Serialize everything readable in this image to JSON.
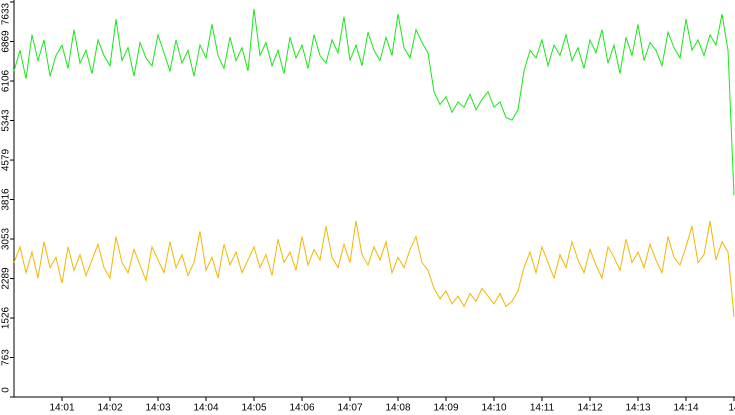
{
  "chart_data": {
    "type": "line",
    "categories": [
      null,
      null,
      null,
      null,
      null,
      null,
      null,
      null,
      "14:01",
      null,
      null,
      null,
      null,
      null,
      null,
      null,
      "14:02",
      null,
      null,
      null,
      null,
      null,
      null,
      null,
      "14:03",
      null,
      null,
      null,
      null,
      null,
      null,
      null,
      "14:04",
      null,
      null,
      null,
      null,
      null,
      null,
      null,
      "14:05",
      null,
      null,
      null,
      null,
      null,
      null,
      null,
      "14:06",
      null,
      null,
      null,
      null,
      null,
      null,
      null,
      "14:07",
      null,
      null,
      null,
      null,
      null,
      null,
      null,
      "14:08",
      null,
      null,
      null,
      null,
      null,
      null,
      null,
      "14:09",
      null,
      null,
      null,
      null,
      null,
      null,
      null,
      "14:10",
      null,
      null,
      null,
      null,
      null,
      null,
      null,
      "14:11",
      null,
      null,
      null,
      null,
      null,
      null,
      null,
      "14:12",
      null,
      null,
      null,
      null,
      null,
      null,
      null,
      "14:13",
      null,
      null,
      null,
      null,
      null,
      null,
      null,
      "14:14",
      null,
      null,
      null,
      null,
      null,
      null,
      null,
      "14"
    ],
    "series": [
      {
        "color": "#19e619",
        "values": [
          6300,
          6700,
          6150,
          7000,
          6500,
          6900,
          6200,
          6600,
          6800,
          6350,
          7100,
          6450,
          6700,
          6250,
          6900,
          6600,
          6400,
          7300,
          6500,
          6750,
          6200,
          6850,
          6550,
          6400,
          7000,
          6650,
          6300,
          6900,
          6450,
          6700,
          6200,
          6800,
          6550,
          7200,
          6600,
          6350,
          6950,
          6500,
          6750,
          6300,
          7500,
          6600,
          6850,
          6400,
          6700,
          6250,
          6950,
          6550,
          6800,
          6350,
          7000,
          6600,
          6450,
          6900,
          6650,
          7350,
          6500,
          6800,
          6400,
          7050,
          6700,
          6500,
          6950,
          6600,
          7400,
          6750,
          6550,
          7100,
          6850,
          6650,
          5900,
          5650,
          5800,
          5500,
          5700,
          5600,
          5850,
          5550,
          5750,
          5900,
          5600,
          5700,
          5400,
          5350,
          5550,
          6300,
          6700,
          6550,
          6900,
          6400,
          6800,
          6600,
          7000,
          6500,
          6750,
          6350,
          6900,
          6650,
          7100,
          6450,
          6800,
          6250,
          6950,
          6600,
          7200,
          6500,
          6850,
          6700,
          6400,
          7050,
          6750,
          6550,
          7300,
          6700,
          6900,
          6600,
          7000,
          6800,
          7400,
          6700,
          3900
        ]
      },
      {
        "color": "#f2b600",
        "values": [
          2600,
          2900,
          2400,
          2800,
          2300,
          3000,
          2500,
          2700,
          2200,
          2900,
          2450,
          2750,
          2350,
          2650,
          2950,
          2500,
          2300,
          3100,
          2600,
          2400,
          2850,
          2550,
          2250,
          2900,
          2650,
          2400,
          3000,
          2500,
          2750,
          2350,
          2600,
          3200,
          2450,
          2700,
          2300,
          2950,
          2550,
          2800,
          2400,
          2650,
          2900,
          2500,
          2750,
          2350,
          3050,
          2600,
          2800,
          2450,
          3100,
          2550,
          2850,
          2650,
          3300,
          2700,
          2500,
          2950,
          2600,
          3400,
          2750,
          2550,
          2900,
          2650,
          3000,
          2400,
          2700,
          2500,
          2850,
          3100,
          2600,
          2450,
          2100,
          1900,
          2050,
          1800,
          1950,
          1750,
          2000,
          1850,
          2100,
          1950,
          1800,
          2000,
          1750,
          1850,
          2050,
          2500,
          2800,
          2400,
          2900,
          2600,
          2300,
          2750,
          2500,
          3000,
          2650,
          2400,
          2850,
          2550,
          2300,
          2900,
          2700,
          2450,
          3050,
          2600,
          2800,
          2500,
          2950,
          2650,
          2400,
          3100,
          2700,
          2550,
          2900,
          3300,
          2600,
          2750,
          3400,
          2650,
          3000,
          2800,
          1550
        ]
      }
    ],
    "ylim": [
      0,
      7633
    ],
    "yticks": [
      0,
      763,
      1526,
      2289,
      3053,
      3816,
      4579,
      5343,
      6106,
      6869,
      7633
    ]
  }
}
